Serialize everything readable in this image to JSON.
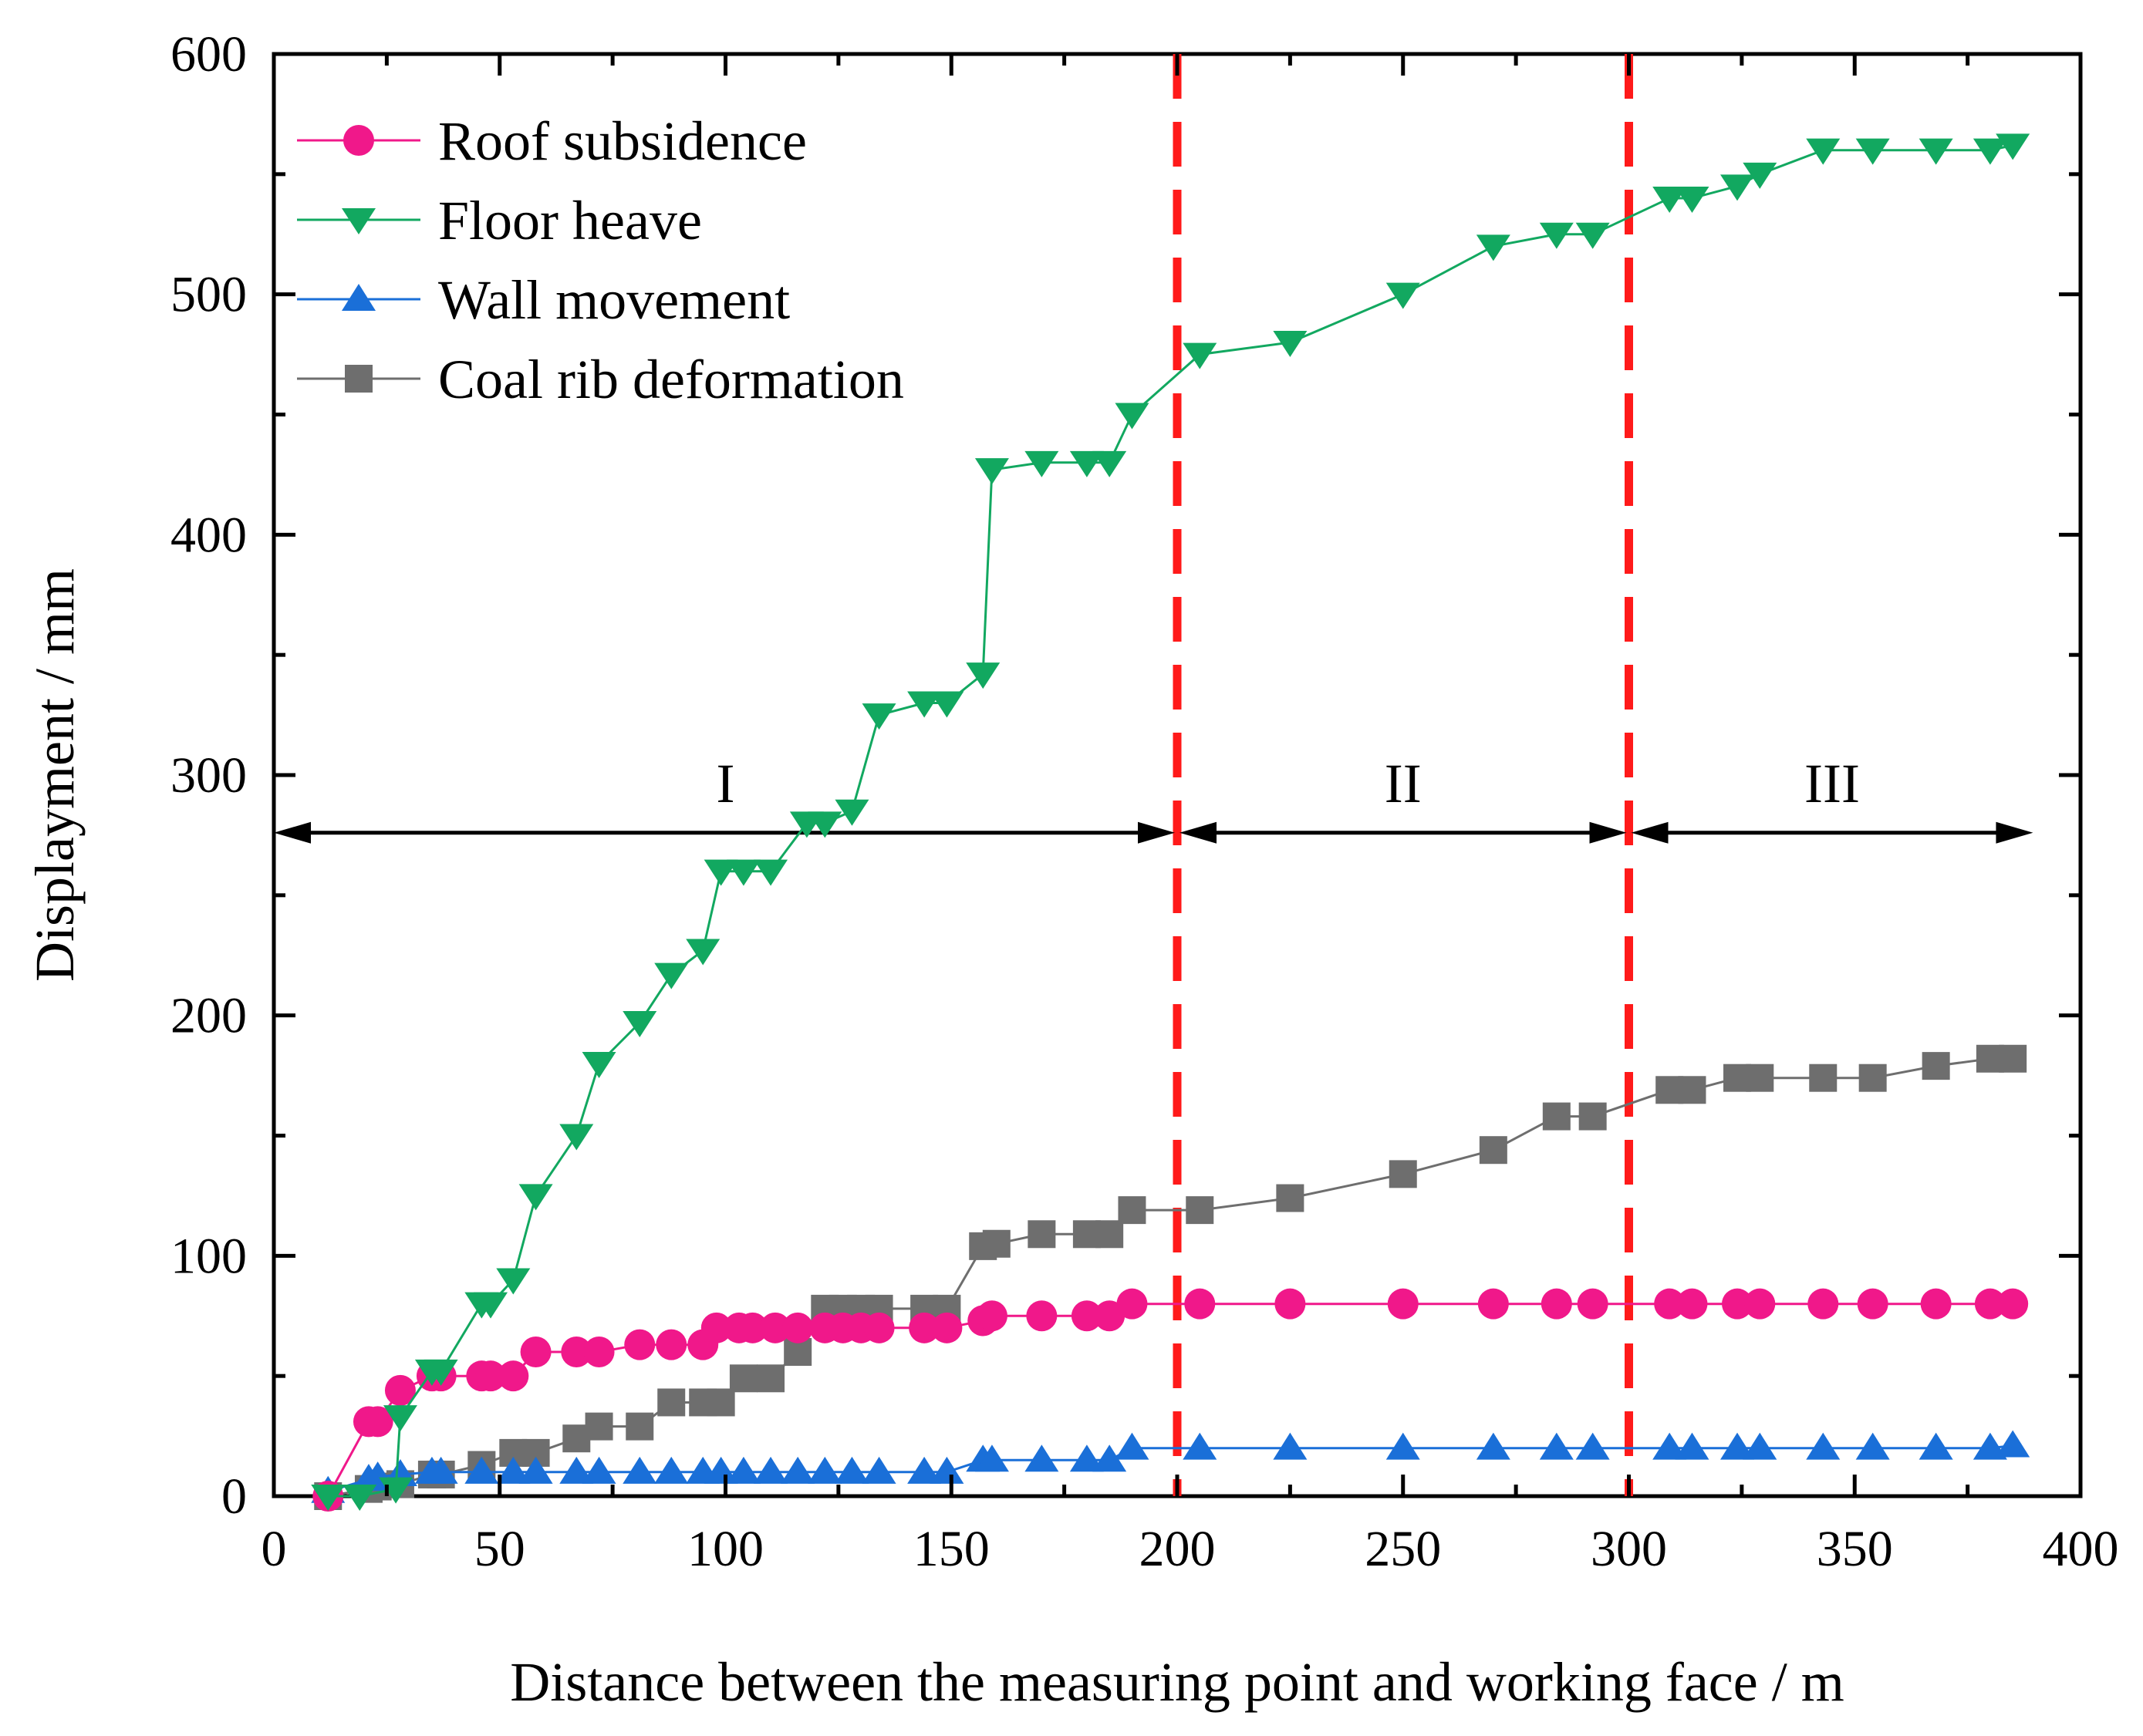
{
  "chart_data": {
    "type": "line",
    "title": "",
    "xlabel": "Distance between the measuring point and working face / m",
    "ylabel": "Displayment / mm",
    "xlim": [
      0,
      400
    ],
    "ylim": [
      0,
      600
    ],
    "xticks": [
      "0",
      "50",
      "100",
      "150",
      "200",
      "250",
      "300",
      "350",
      "400"
    ],
    "yticks": [
      "0",
      "100",
      "200",
      "300",
      "400",
      "500",
      "600"
    ],
    "legend_position": "top-left",
    "grid": false,
    "zone_boundaries": [
      200,
      300
    ],
    "zone_arrow_y": 276,
    "zones": [
      {
        "label": "I",
        "from": 0,
        "to": 200
      },
      {
        "label": "II",
        "from": 200,
        "to": 300
      },
      {
        "label": "III",
        "from": 300,
        "to": 390
      }
    ],
    "colors": {
      "roof": "#f0188a",
      "floor": "#12a860",
      "wall": "#1a6fd8",
      "coal": "#6e6e6e",
      "boundary": "#ff1a1a",
      "axis": "#000000"
    },
    "series": [
      {
        "key": "roof",
        "name": "Roof subsidence",
        "marker": "circle",
        "x": [
          12,
          21,
          23,
          28,
          35,
          37,
          46,
          48,
          53,
          58,
          67,
          72,
          81,
          88,
          95,
          98,
          103,
          106,
          111,
          116,
          122,
          126,
          130,
          134,
          144,
          149,
          157,
          159,
          170,
          180,
          185,
          190,
          205,
          225,
          250,
          270,
          284,
          292,
          309,
          314,
          324,
          329,
          343,
          354,
          368,
          380,
          385
        ],
        "values": [
          0,
          31,
          31,
          44,
          50,
          50,
          50,
          50,
          50,
          60,
          60,
          60,
          63,
          63,
          63,
          70,
          70,
          70,
          70,
          70,
          70,
          70,
          70,
          70,
          70,
          70,
          73,
          75,
          75,
          75,
          75,
          80,
          80,
          80,
          80,
          80,
          80,
          80,
          80,
          80,
          80,
          80,
          80,
          80,
          80,
          80,
          80
        ]
      },
      {
        "key": "floor",
        "name": "Floor heave",
        "marker": "triangle-down",
        "x": [
          12,
          19,
          27,
          28,
          35,
          37,
          46,
          48,
          53,
          58,
          67,
          72,
          81,
          88,
          95,
          99,
          104,
          110,
          118,
          122,
          128,
          134,
          144,
          149,
          157,
          159,
          170,
          180,
          185,
          190,
          205,
          225,
          250,
          270,
          284,
          292,
          309,
          314,
          324,
          329,
          343,
          354,
          368,
          380,
          385
        ],
        "values": [
          0,
          0,
          3,
          33,
          52,
          52,
          80,
          80,
          90,
          125,
          150,
          180,
          197,
          217,
          227,
          260,
          260,
          260,
          280,
          280,
          285,
          325,
          330,
          330,
          342,
          427,
          430,
          430,
          430,
          450,
          475,
          480,
          500,
          520,
          525,
          525,
          540,
          540,
          545,
          550,
          560,
          560,
          560,
          560,
          562
        ]
      },
      {
        "key": "wall",
        "name": "Wall movement",
        "marker": "triangle-up",
        "x": [
          12,
          21,
          23,
          28,
          35,
          37,
          46,
          53,
          58,
          67,
          72,
          81,
          88,
          95,
          99,
          104,
          110,
          116,
          122,
          128,
          134,
          144,
          149,
          157,
          159,
          170,
          180,
          185,
          190,
          205,
          225,
          250,
          270,
          284,
          292,
          309,
          314,
          324,
          329,
          343,
          354,
          368,
          380,
          385
        ],
        "values": [
          2,
          7,
          8,
          9,
          10,
          10,
          10,
          10,
          10,
          10,
          10,
          10,
          10,
          10,
          10,
          10,
          10,
          10,
          10,
          10,
          10,
          10,
          10,
          15,
          15,
          15,
          15,
          15,
          20,
          20,
          20,
          20,
          20,
          20,
          20,
          20,
          20,
          20,
          20,
          20,
          20,
          20,
          20,
          21
        ]
      },
      {
        "key": "coal",
        "name": "Coal rib deformation",
        "marker": "square",
        "x": [
          12,
          21,
          23,
          28,
          35,
          37,
          46,
          53,
          58,
          67,
          72,
          81,
          88,
          95,
          99,
          104,
          110,
          116,
          122,
          126,
          130,
          134,
          144,
          149,
          157,
          160,
          170,
          180,
          185,
          190,
          205,
          225,
          250,
          270,
          284,
          292,
          309,
          314,
          324,
          329,
          343,
          354,
          368,
          380,
          385
        ],
        "values": [
          0,
          3,
          4,
          5,
          9,
          9,
          13,
          18,
          18,
          24,
          29,
          29,
          39,
          39,
          39,
          49,
          49,
          60,
          78,
          78,
          78,
          78,
          78,
          78,
          104,
          105,
          109,
          109,
          109,
          119,
          119,
          124,
          134,
          144,
          158,
          158,
          169,
          169,
          174,
          174,
          174,
          174,
          179,
          182,
          182
        ]
      }
    ]
  }
}
